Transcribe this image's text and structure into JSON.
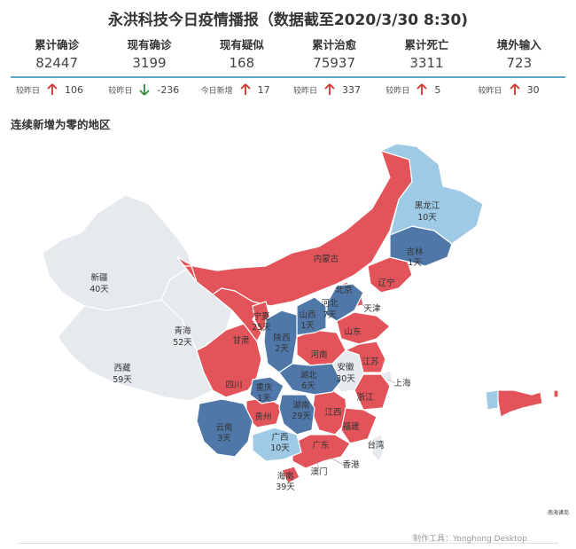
{
  "title": "永洪科技今日疫情播报（数据截至2020/3/30 8:30)",
  "stats": [
    {
      "label": "累计确诊",
      "value": "82447"
    },
    {
      "label": "现有确诊",
      "value": "3199"
    },
    {
      "label": "现有疑似",
      "value": "168"
    },
    {
      "label": "累计治愈",
      "value": "75937"
    },
    {
      "label": "累计死亡",
      "value": "3311"
    },
    {
      "label": "境外输入",
      "value": "723"
    }
  ],
  "deltas": [
    {
      "label": "较昨日",
      "value": "106",
      "direction": "up"
    },
    {
      "label": "较昨日",
      "value": "-236",
      "direction": "down"
    },
    {
      "label": "今日新增",
      "value": "17",
      "direction": "up"
    },
    {
      "label": "较昨日",
      "value": "337",
      "direction": "up"
    },
    {
      "label": "较昨日",
      "value": "5",
      "direction": "up"
    },
    {
      "label": "较昨日",
      "value": "30",
      "direction": "up"
    }
  ],
  "section_title": "连续新增为零的地区",
  "colors": {
    "red": "#e2545a",
    "blue": "#4f78a8",
    "lightblue": "#9fcae6",
    "gray": "#e6e9ee",
    "up_arrow": "#d0342c",
    "down_arrow": "#2e8b3a",
    "divider": "#5aa7c6"
  },
  "map_labels": {
    "xinjiang": {
      "name": "新疆",
      "days": "40天"
    },
    "xizang": {
      "name": "西藏",
      "days": "59天"
    },
    "qinghai": {
      "name": "青海",
      "days": "52天"
    },
    "heilongjiang": {
      "name": "黑龙江",
      "days": "10天"
    },
    "jilin": {
      "name": "吉林",
      "days": "1天"
    },
    "neimenggu": {
      "name": "内蒙古"
    },
    "liaoning": {
      "name": "辽宁"
    },
    "beijing": {
      "name": "北京"
    },
    "tianjin": {
      "name": "天津"
    },
    "hebei": {
      "name": "河北",
      "days": "7天"
    },
    "shanxi": {
      "name": "山西",
      "days": "1天"
    },
    "ningxia": {
      "name": "宁夏",
      "days": "25天"
    },
    "gansu": {
      "name": "甘肃"
    },
    "shaanxi": {
      "name": "陕西",
      "days": "2天"
    },
    "shandong": {
      "name": "山东"
    },
    "henan": {
      "name": "河南"
    },
    "jiangsu": {
      "name": "江苏"
    },
    "anhui": {
      "name": "安徽",
      "days": "30天"
    },
    "shanghai": {
      "name": "上海"
    },
    "sichuan": {
      "name": "四川"
    },
    "chongqing": {
      "name": "重庆",
      "days": "1天"
    },
    "hubei": {
      "name": "湖北",
      "days": "6天"
    },
    "hunan": {
      "name": "湖南",
      "days": "29天"
    },
    "zhejiang": {
      "name": "浙江"
    },
    "guizhou": {
      "name": "贵州"
    },
    "jiangxi": {
      "name": "江西"
    },
    "fujian": {
      "name": "福建"
    },
    "yunnan": {
      "name": "云南",
      "days": "3天"
    },
    "guangxi": {
      "name": "广西",
      "days": "10天"
    },
    "guangdong": {
      "name": "广东"
    },
    "taiwan": {
      "name": "台湾"
    },
    "hongkong": {
      "name": "香港"
    },
    "macau": {
      "name": "澳门"
    },
    "hainan": {
      "name": "海南",
      "days": "39天"
    },
    "nanhai": {
      "name": "南海诸岛"
    }
  },
  "footer": "制作工具：Yonghong Desktop"
}
